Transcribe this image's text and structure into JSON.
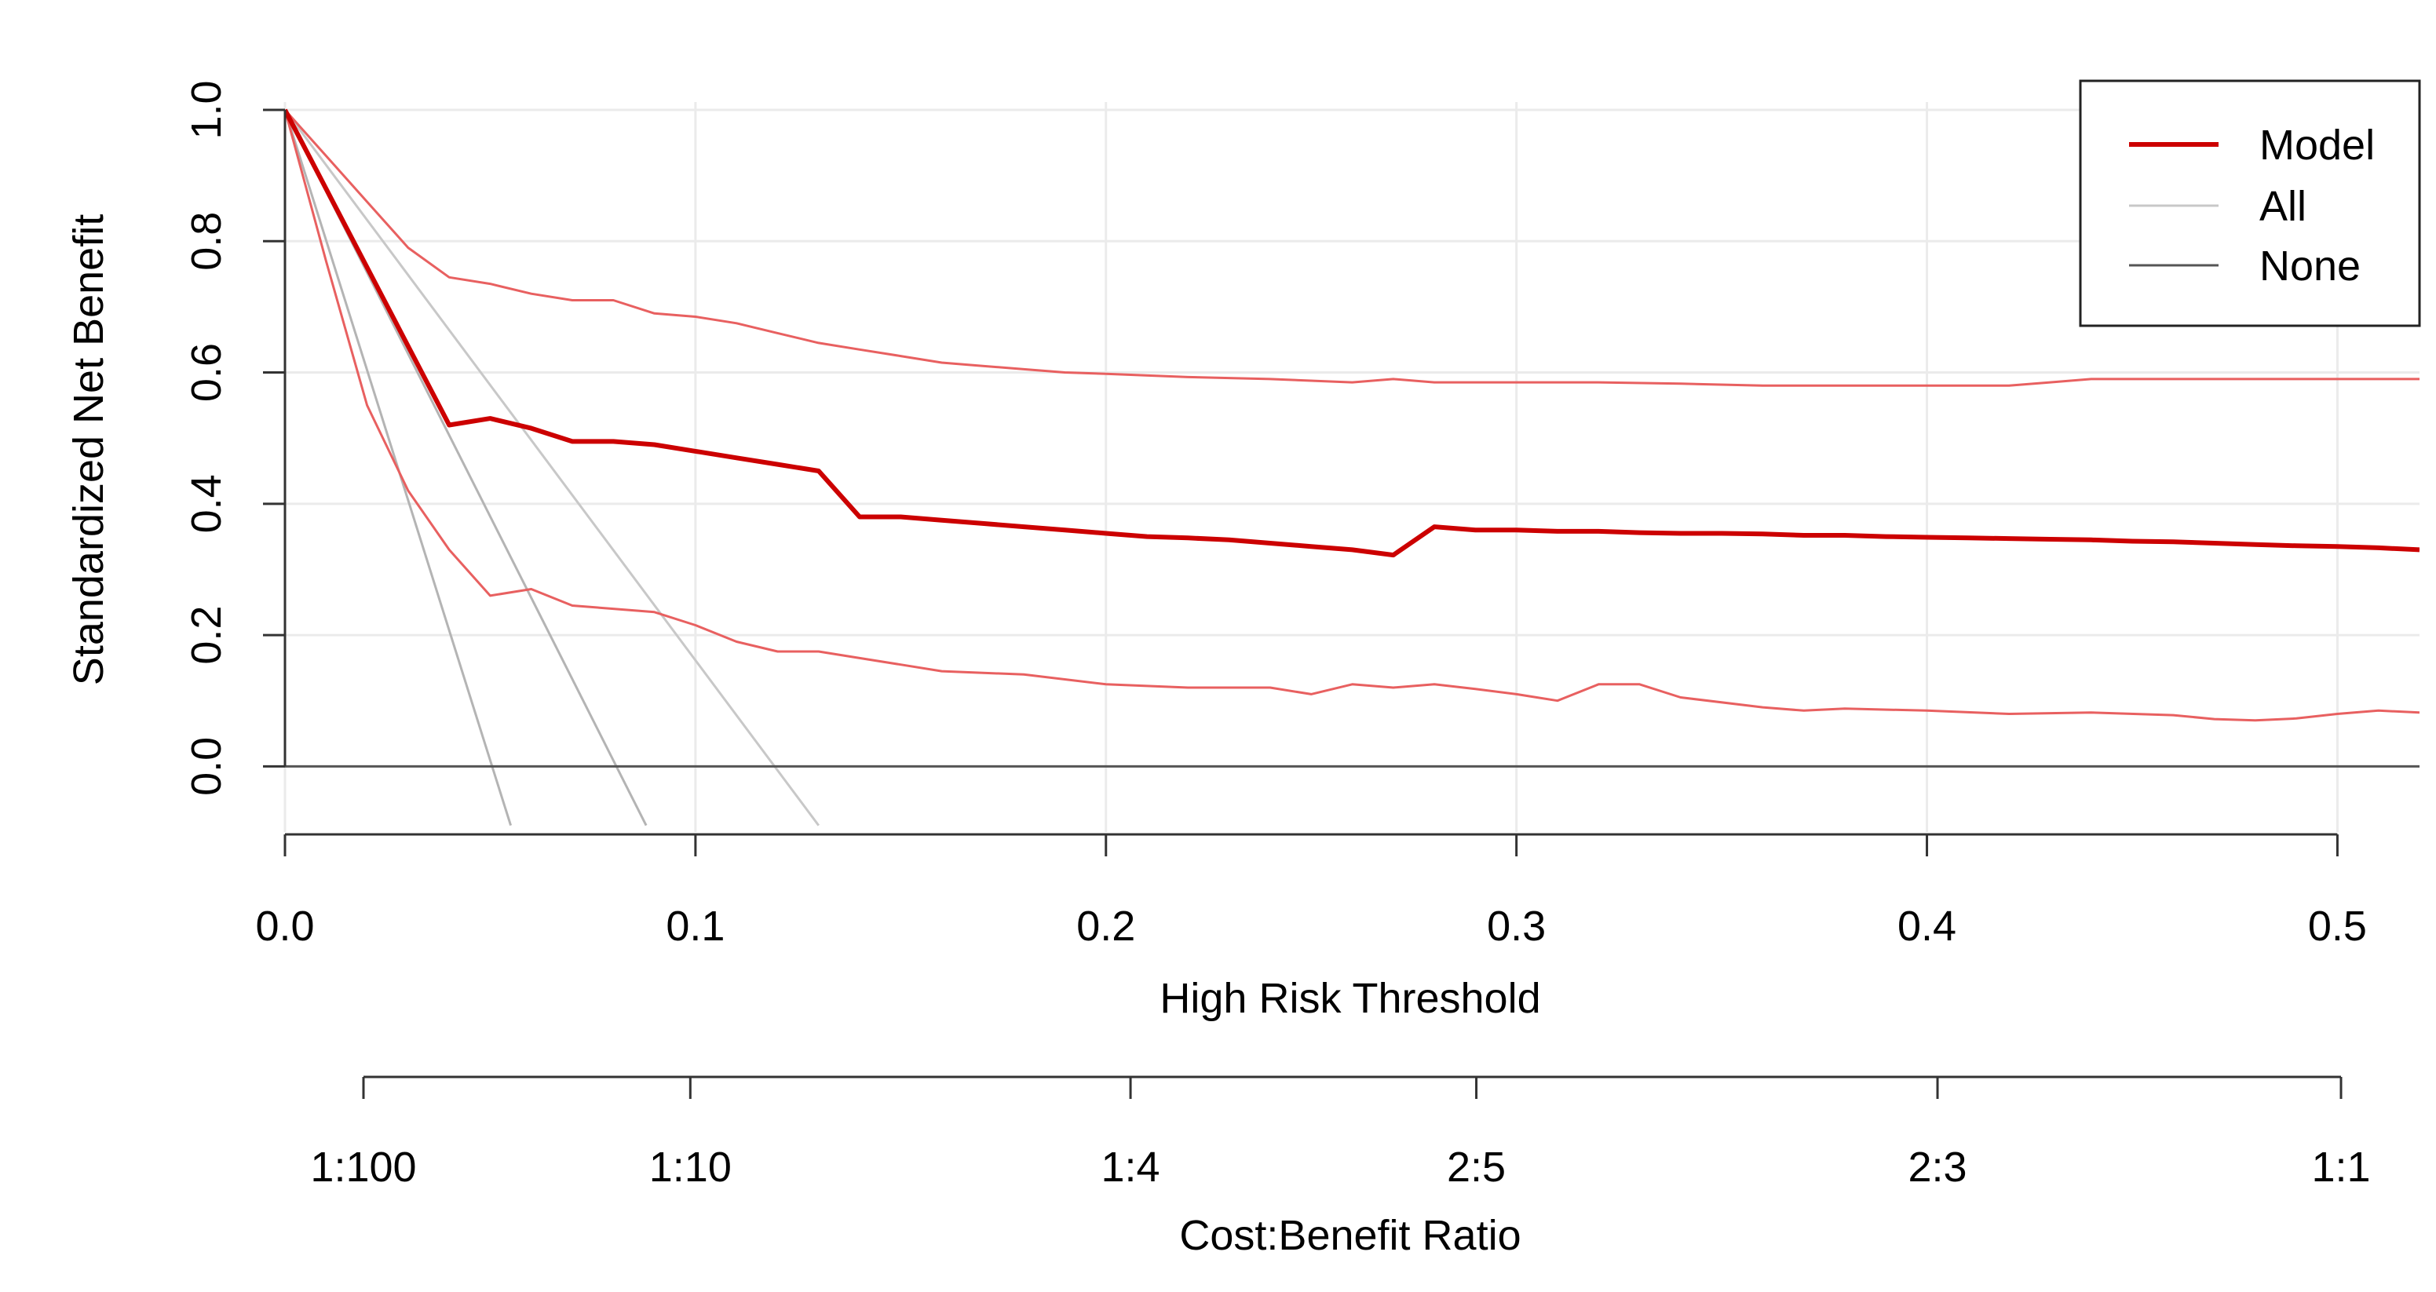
{
  "chart_data": {
    "type": "line",
    "title": "",
    "xlabel": "High Risk Threshold",
    "ylabel": "Standardized Net Benefit",
    "xlim": [
      0,
      0.52
    ],
    "ylim": [
      -0.1,
      1.0
    ],
    "grid": true,
    "x_ticks": [
      {
        "value": 0.0,
        "label": "0.0"
      },
      {
        "value": 0.1,
        "label": "0.1"
      },
      {
        "value": 0.2,
        "label": "0.2"
      },
      {
        "value": 0.3,
        "label": "0.3"
      },
      {
        "value": 0.4,
        "label": "0.4"
      },
      {
        "value": 0.5,
        "label": "0.5"
      }
    ],
    "y_ticks": [
      {
        "value": 0.0,
        "label": "0.0"
      },
      {
        "value": 0.2,
        "label": "0.2"
      },
      {
        "value": 0.4,
        "label": "0.4"
      },
      {
        "value": 0.6,
        "label": "0.6"
      },
      {
        "value": 0.8,
        "label": "0.8"
      },
      {
        "value": 1.0,
        "label": "1.0"
      }
    ],
    "secondary_axis": {
      "label": "Cost:Benefit Ratio",
      "ticks": [
        {
          "value": 0.0099,
          "label": "1:100"
        },
        {
          "value": 0.0909,
          "label": "1:10"
        },
        {
          "value": 0.2,
          "label": "1:4"
        },
        {
          "value": 0.2857,
          "label": "2:5"
        },
        {
          "value": 0.4,
          "label": "2:3"
        },
        {
          "value": 0.5,
          "label": "1:1"
        }
      ]
    },
    "legend": {
      "position": "top-right",
      "entries": [
        {
          "label": "Model",
          "color": "#cc0000"
        },
        {
          "label": "All",
          "color": "#c8c8c8"
        },
        {
          "label": "None",
          "color": "#555555"
        }
      ]
    },
    "series": [
      {
        "name": "Model",
        "role": "estimate",
        "color": "#cc0000",
        "x": [
          0.0,
          0.01,
          0.02,
          0.03,
          0.04,
          0.05,
          0.06,
          0.07,
          0.08,
          0.09,
          0.1,
          0.11,
          0.12,
          0.13,
          0.14,
          0.15,
          0.16,
          0.17,
          0.18,
          0.19,
          0.2,
          0.21,
          0.22,
          0.23,
          0.24,
          0.25,
          0.26,
          0.27,
          0.28,
          0.29,
          0.3,
          0.31,
          0.32,
          0.33,
          0.34,
          0.35,
          0.36,
          0.37,
          0.38,
          0.39,
          0.4,
          0.41,
          0.42,
          0.43,
          0.44,
          0.45,
          0.46,
          0.47,
          0.48,
          0.49,
          0.5,
          0.51,
          0.52
        ],
        "y": [
          1.0,
          0.88,
          0.76,
          0.64,
          0.52,
          0.53,
          0.515,
          0.495,
          0.495,
          0.49,
          0.48,
          0.47,
          0.46,
          0.45,
          0.38,
          0.38,
          0.375,
          0.37,
          0.365,
          0.36,
          0.355,
          0.35,
          0.348,
          0.345,
          0.34,
          0.335,
          0.33,
          0.322,
          0.365,
          0.36,
          0.36,
          0.358,
          0.358,
          0.356,
          0.355,
          0.355,
          0.354,
          0.352,
          0.352,
          0.35,
          0.349,
          0.348,
          0.347,
          0.346,
          0.345,
          0.343,
          0.342,
          0.34,
          0.338,
          0.336,
          0.335,
          0.333,
          0.33
        ]
      },
      {
        "name": "Model upper CI",
        "role": "ci",
        "color": "#e86060",
        "x": [
          0.0,
          0.01,
          0.02,
          0.03,
          0.04,
          0.05,
          0.06,
          0.07,
          0.08,
          0.09,
          0.1,
          0.11,
          0.12,
          0.13,
          0.14,
          0.15,
          0.16,
          0.17,
          0.18,
          0.19,
          0.2,
          0.22,
          0.24,
          0.26,
          0.27,
          0.28,
          0.3,
          0.32,
          0.34,
          0.36,
          0.38,
          0.4,
          0.42,
          0.43,
          0.44,
          0.46,
          0.48,
          0.5,
          0.52
        ],
        "y": [
          1.0,
          0.93,
          0.86,
          0.79,
          0.745,
          0.735,
          0.72,
          0.71,
          0.71,
          0.69,
          0.685,
          0.675,
          0.66,
          0.645,
          0.635,
          0.625,
          0.615,
          0.61,
          0.605,
          0.6,
          0.598,
          0.593,
          0.59,
          0.585,
          0.59,
          0.585,
          0.585,
          0.585,
          0.583,
          0.58,
          0.58,
          0.58,
          0.58,
          0.585,
          0.59,
          0.59,
          0.59,
          0.59,
          0.59
        ]
      },
      {
        "name": "Model lower CI",
        "role": "ci",
        "color": "#e86060",
        "x": [
          0.0,
          0.01,
          0.02,
          0.03,
          0.04,
          0.05,
          0.06,
          0.07,
          0.08,
          0.09,
          0.1,
          0.11,
          0.12,
          0.13,
          0.14,
          0.15,
          0.16,
          0.18,
          0.2,
          0.22,
          0.24,
          0.25,
          0.26,
          0.27,
          0.28,
          0.29,
          0.3,
          0.31,
          0.32,
          0.33,
          0.34,
          0.36,
          0.37,
          0.38,
          0.4,
          0.42,
          0.44,
          0.46,
          0.47,
          0.48,
          0.49,
          0.5,
          0.51,
          0.52
        ],
        "y": [
          1.0,
          0.77,
          0.55,
          0.42,
          0.33,
          0.26,
          0.27,
          0.245,
          0.24,
          0.235,
          0.215,
          0.19,
          0.175,
          0.175,
          0.165,
          0.155,
          0.145,
          0.14,
          0.125,
          0.12,
          0.12,
          0.11,
          0.125,
          0.12,
          0.125,
          0.118,
          0.11,
          0.1,
          0.125,
          0.125,
          0.105,
          0.09,
          0.085,
          0.088,
          0.085,
          0.08,
          0.082,
          0.078,
          0.072,
          0.07,
          0.073,
          0.08,
          0.085,
          0.082
        ]
      },
      {
        "name": "All",
        "role": "estimate",
        "color": "#c8c8c8",
        "x": [
          0.0,
          0.13
        ],
        "y": [
          1.0,
          -0.09
        ]
      },
      {
        "name": "All lower bound 1",
        "role": "ci",
        "color": "#b4b4b4",
        "x": [
          0.0,
          0.088
        ],
        "y": [
          1.0,
          -0.09
        ]
      },
      {
        "name": "All lower bound 2",
        "role": "ci",
        "color": "#b4b4b4",
        "x": [
          0.0,
          0.055
        ],
        "y": [
          1.0,
          -0.09
        ]
      },
      {
        "name": "None",
        "role": "estimate",
        "color": "#555555",
        "x": [
          0.0,
          0.52
        ],
        "y": [
          0.0,
          0.0
        ]
      }
    ]
  }
}
